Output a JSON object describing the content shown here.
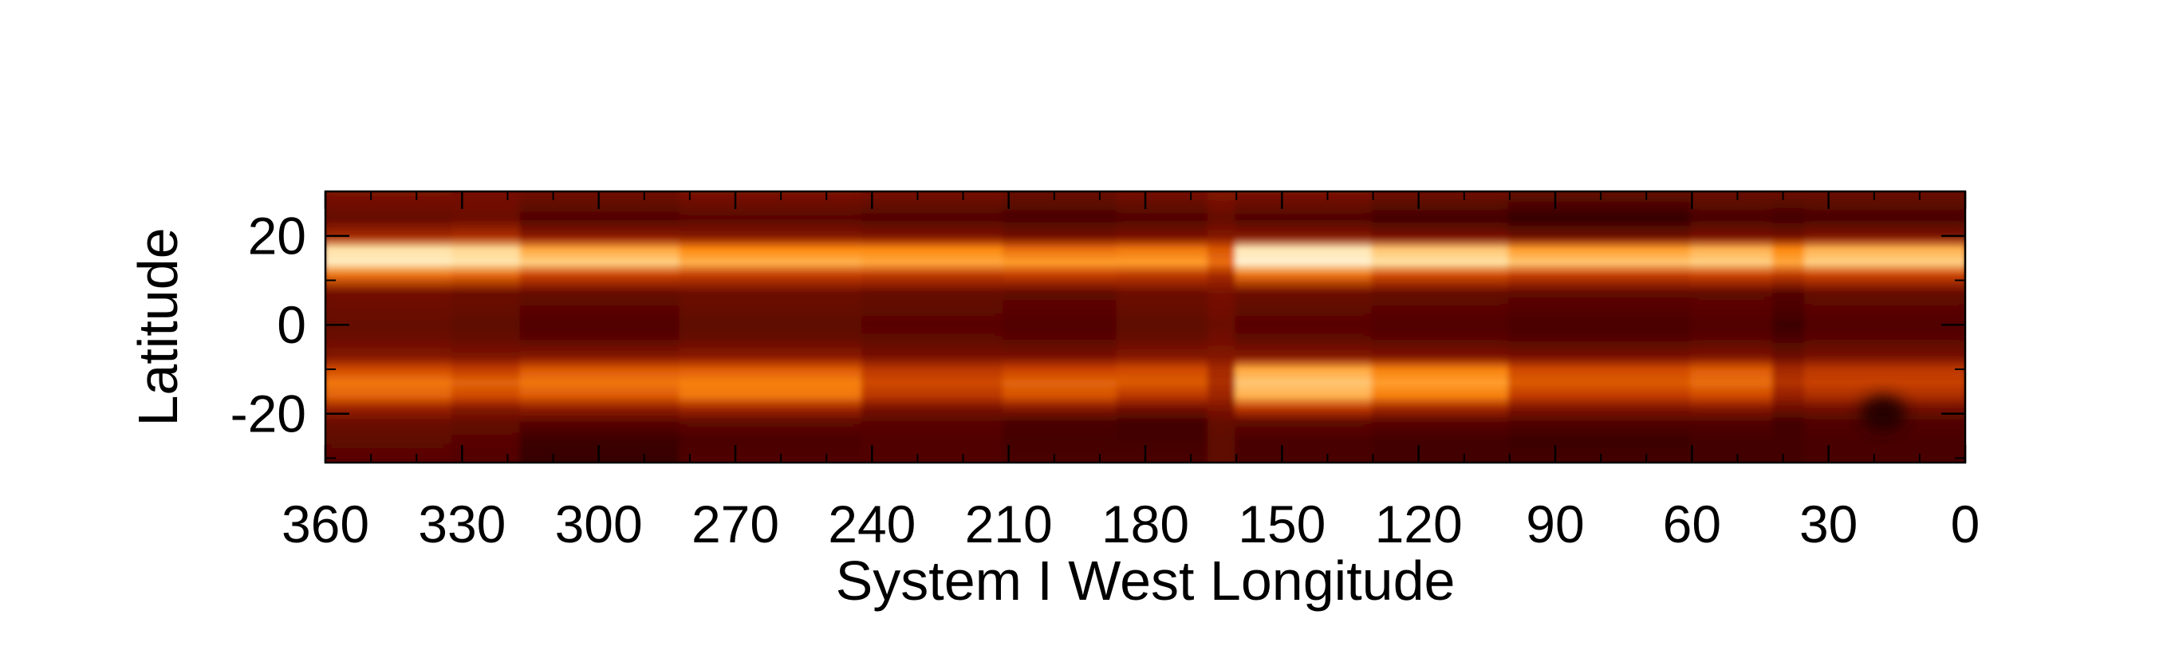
{
  "chart_data": {
    "type": "heatmap",
    "title": "",
    "xlabel": "System I West Longitude",
    "ylabel": "Latitude",
    "xlim": [
      360,
      0
    ],
    "ylim": [
      -31,
      30
    ],
    "x_ticks": [
      360,
      330,
      300,
      270,
      240,
      210,
      180,
      150,
      120,
      90,
      60,
      30,
      0
    ],
    "y_ticks": [
      20,
      0,
      -20
    ],
    "x_tick_labels": [
      "360",
      "330",
      "300",
      "270",
      "240",
      "210",
      "180",
      "150",
      "120",
      "90",
      "60",
      "30",
      "0"
    ],
    "y_tick_labels": [
      "20",
      "0",
      "-20"
    ],
    "colormap": [
      "#200000",
      "#5a0500",
      "#8c1a00",
      "#c84000",
      "#ff8c10",
      "#ffe0a0",
      "#fff8e8"
    ],
    "grid": false,
    "legend": "none",
    "latitudes": [
      30,
      24,
      20,
      17,
      14,
      11,
      7,
      3,
      0,
      -3,
      -7,
      -10,
      -13,
      -16,
      -19,
      -22,
      -26,
      -31
    ],
    "longitude_segments": [
      {
        "from": 360,
        "to": 332,
        "profile": [
          0.28,
          0.2,
          0.4,
          0.85,
          0.9,
          0.6,
          0.24,
          0.22,
          0.2,
          0.22,
          0.3,
          0.52,
          0.62,
          0.58,
          0.36,
          0.22,
          0.18,
          0.16
        ]
      },
      {
        "from": 332,
        "to": 317,
        "profile": [
          0.26,
          0.22,
          0.42,
          0.82,
          0.86,
          0.58,
          0.22,
          0.2,
          0.18,
          0.2,
          0.28,
          0.48,
          0.58,
          0.52,
          0.3,
          0.2,
          0.16,
          0.14
        ]
      },
      {
        "from": 317,
        "to": 282,
        "profile": [
          0.24,
          0.14,
          0.32,
          0.72,
          0.8,
          0.5,
          0.2,
          0.16,
          0.14,
          0.16,
          0.3,
          0.55,
          0.62,
          0.56,
          0.34,
          0.16,
          0.08,
          0.06
        ]
      },
      {
        "from": 282,
        "to": 242,
        "profile": [
          0.28,
          0.16,
          0.3,
          0.66,
          0.74,
          0.48,
          0.22,
          0.2,
          0.18,
          0.2,
          0.32,
          0.56,
          0.64,
          0.62,
          0.38,
          0.18,
          0.12,
          0.14
        ]
      },
      {
        "from": 242,
        "to": 211,
        "profile": [
          0.26,
          0.14,
          0.28,
          0.66,
          0.72,
          0.46,
          0.2,
          0.18,
          0.16,
          0.18,
          0.26,
          0.46,
          0.52,
          0.46,
          0.26,
          0.16,
          0.14,
          0.14
        ]
      },
      {
        "from": 211,
        "to": 186,
        "profile": [
          0.22,
          0.12,
          0.24,
          0.6,
          0.7,
          0.48,
          0.18,
          0.16,
          0.14,
          0.16,
          0.26,
          0.5,
          0.58,
          0.54,
          0.3,
          0.12,
          0.1,
          0.12
        ]
      },
      {
        "from": 186,
        "to": 166,
        "profile": [
          0.26,
          0.14,
          0.26,
          0.62,
          0.7,
          0.46,
          0.22,
          0.2,
          0.18,
          0.2,
          0.3,
          0.52,
          0.56,
          0.46,
          0.24,
          0.1,
          0.1,
          0.12
        ]
      },
      {
        "from": 166,
        "to": 160,
        "profile": [
          0.3,
          0.2,
          0.3,
          0.55,
          0.6,
          0.4,
          0.26,
          0.24,
          0.22,
          0.24,
          0.3,
          0.4,
          0.42,
          0.38,
          0.28,
          0.2,
          0.18,
          0.18
        ]
      },
      {
        "from": 160,
        "to": 130,
        "profile": [
          0.28,
          0.14,
          0.3,
          0.88,
          0.94,
          0.6,
          0.22,
          0.18,
          0.16,
          0.18,
          0.3,
          0.72,
          0.78,
          0.74,
          0.46,
          0.18,
          0.12,
          0.12
        ]
      },
      {
        "from": 130,
        "to": 100,
        "profile": [
          0.24,
          0.1,
          0.26,
          0.78,
          0.84,
          0.52,
          0.2,
          0.16,
          0.14,
          0.16,
          0.28,
          0.64,
          0.7,
          0.64,
          0.38,
          0.16,
          0.1,
          0.1
        ]
      },
      {
        "from": 100,
        "to": 60,
        "profile": [
          0.2,
          0.06,
          0.22,
          0.7,
          0.78,
          0.48,
          0.18,
          0.14,
          0.12,
          0.14,
          0.26,
          0.52,
          0.56,
          0.48,
          0.28,
          0.14,
          0.08,
          0.1
        ]
      },
      {
        "from": 60,
        "to": 42,
        "profile": [
          0.22,
          0.12,
          0.26,
          0.74,
          0.8,
          0.5,
          0.18,
          0.16,
          0.14,
          0.16,
          0.28,
          0.56,
          0.6,
          0.52,
          0.3,
          0.14,
          0.1,
          0.1
        ]
      },
      {
        "from": 42,
        "to": 35,
        "profile": [
          0.22,
          0.1,
          0.24,
          0.66,
          0.72,
          0.46,
          0.14,
          0.12,
          0.08,
          0.12,
          0.22,
          0.4,
          0.44,
          0.36,
          0.22,
          0.1,
          0.1,
          0.1
        ]
      },
      {
        "from": 35,
        "to": 0,
        "profile": [
          0.22,
          0.12,
          0.28,
          0.74,
          0.8,
          0.5,
          0.2,
          0.16,
          0.14,
          0.16,
          0.26,
          0.46,
          0.5,
          0.42,
          0.24,
          0.14,
          0.12,
          0.12
        ]
      }
    ],
    "features": [
      {
        "type": "dark-oval",
        "center_lon": 18,
        "center_lat": -20,
        "lon_radius": 5,
        "lat_radius": 4
      }
    ]
  }
}
